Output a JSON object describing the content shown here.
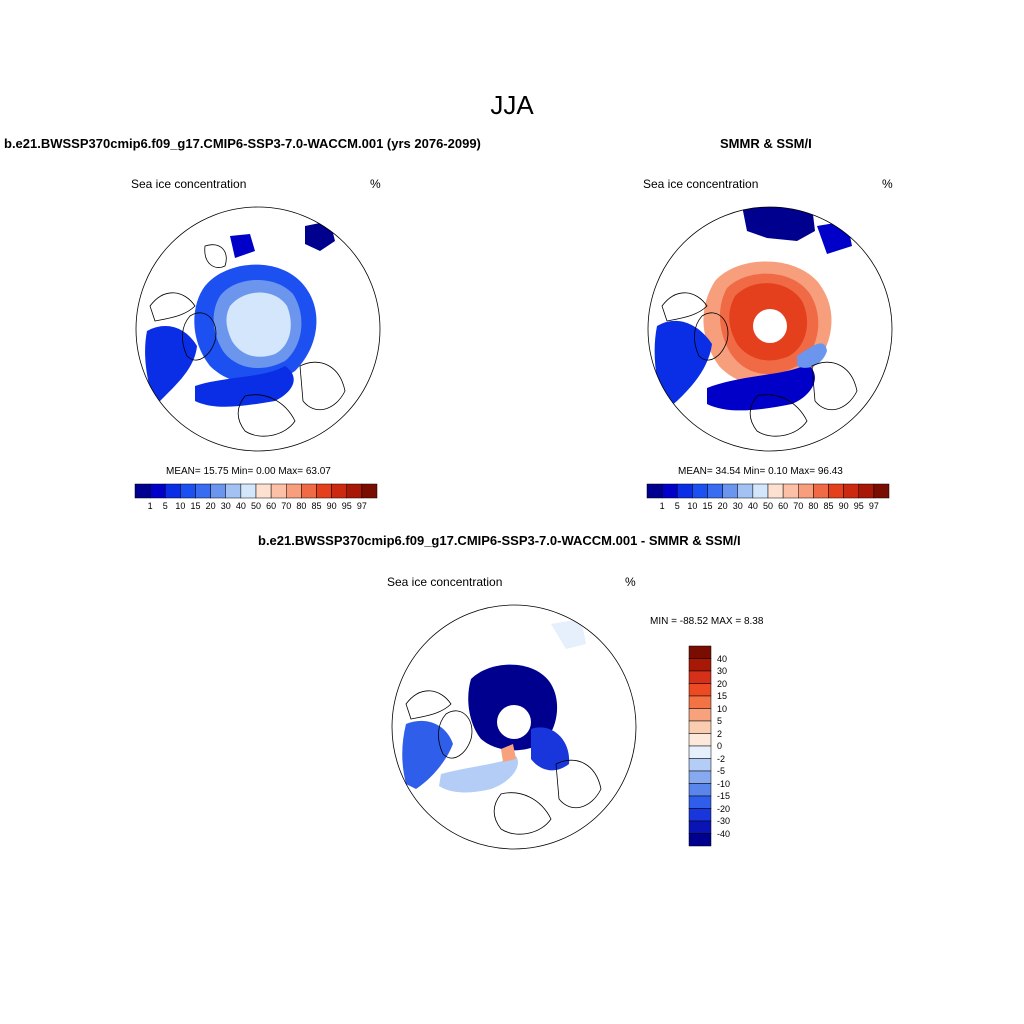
{
  "figure": {
    "season": "JJA"
  },
  "panels": {
    "model": {
      "title": "b.e21.BWSSP370cmip6.f09_g17.CMIP6-SSP3-7.0-WACCM.001 (yrs 2076-2099)",
      "subtitle_left": "Sea ice concentration",
      "subtitle_right": "%",
      "stats": {
        "mean_label": "MEAN=",
        "mean": "15.75",
        "min_label": "Min=",
        "min": "0.00",
        "max_label": "Max=",
        "max": "63.07"
      }
    },
    "obs": {
      "title": "SMMR & SSM/I",
      "subtitle_left": "Sea ice concentration",
      "subtitle_right": "%",
      "stats": {
        "mean_label": "MEAN=",
        "mean": "34.54",
        "min_label": "Min=",
        "min": "0.10",
        "max_label": "Max=",
        "max": "96.43"
      }
    },
    "diff": {
      "title": "b.e21.BWSSP370cmip6.f09_g17.CMIP6-SSP3-7.0-WACCM.001 - SMMR & SSM/I",
      "subtitle_left": "Sea ice concentration",
      "subtitle_right": "%",
      "stats": {
        "min_label": "MIN =",
        "min": "-88.52",
        "max_label": "MAX =",
        "max": "8.38"
      }
    }
  },
  "colorbars": {
    "concentration": {
      "levels": [
        "1",
        "5",
        "10",
        "15",
        "20",
        "30",
        "40",
        "50",
        "60",
        "70",
        "80",
        "85",
        "90",
        "95",
        "97"
      ],
      "colors": [
        "#00008f",
        "#0000c8",
        "#0a2ee6",
        "#1c50f0",
        "#3a6cf2",
        "#6c95ee",
        "#a3c2f3",
        "#d4e6fb",
        "#fde0d0",
        "#fbc0a6",
        "#f79e7c",
        "#f06a45",
        "#e5401e",
        "#cc2a10",
        "#a81806",
        "#7a0d02"
      ]
    },
    "difference": {
      "levels": [
        "40",
        "30",
        "20",
        "15",
        "10",
        "5",
        "2",
        "0",
        "-2",
        "-5",
        "-10",
        "-15",
        "-20",
        "-30",
        "-40"
      ],
      "colors": [
        "#7a0d02",
        "#a81806",
        "#d7301a",
        "#eb4a22",
        "#f37345",
        "#f7a27c",
        "#fbcdb0",
        "#fde9dc",
        "#e6effc",
        "#b4cdf6",
        "#86a9f0",
        "#5a86ec",
        "#2f5eea",
        "#1836dc",
        "#0a14b4",
        "#00008f"
      ]
    }
  },
  "legend": {
    "ocean": "#ffffff",
    "land_outline": "#000000"
  }
}
